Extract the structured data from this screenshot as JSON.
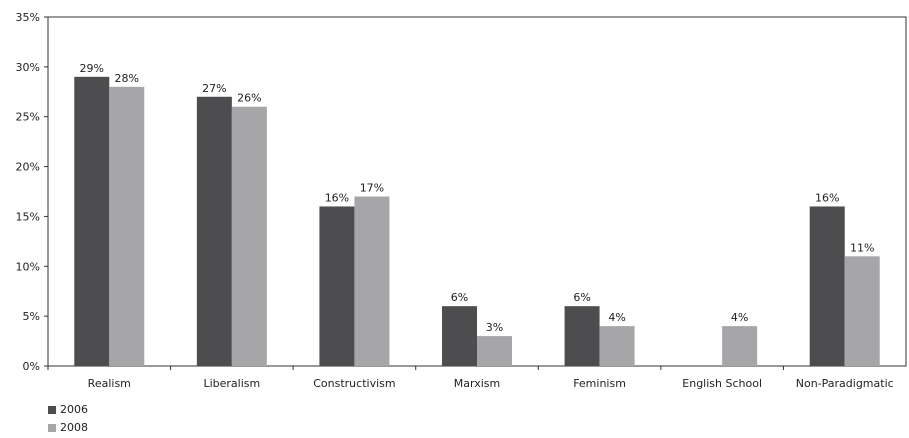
{
  "chart_data": {
    "type": "bar",
    "categories": [
      "Realism",
      "Liberalism",
      "Constructivism",
      "Marxism",
      "Feminism",
      "English School",
      "Non-Paradigmatic"
    ],
    "series": [
      {
        "name": "2006",
        "values": [
          29,
          27,
          16,
          6,
          6,
          null,
          16
        ],
        "labels": [
          "29%",
          "27%",
          "16%",
          "6%",
          "6%",
          "",
          "16%"
        ],
        "color": "#4d4d4f"
      },
      {
        "name": "2008",
        "values": [
          28,
          26,
          17,
          3,
          4,
          4,
          11
        ],
        "labels": [
          "28%",
          "26%",
          "17%",
          "3%",
          "4%",
          "4%",
          "11%"
        ],
        "color": "#a6a6a8"
      }
    ],
    "ylim": [
      0,
      35
    ],
    "yticks": [
      "0%",
      "5%",
      "10%",
      "15%",
      "20%",
      "25%",
      "30%",
      "35%"
    ],
    "grid": false,
    "legend_position": "bottom-left"
  }
}
